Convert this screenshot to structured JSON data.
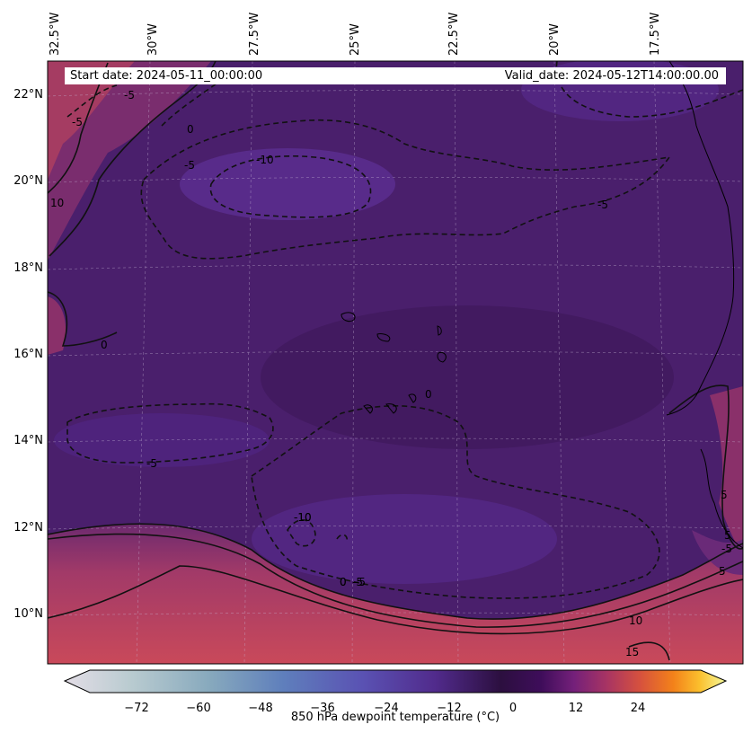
{
  "header": {
    "start_date": "Start date: 2024-05-11_00:00:00",
    "valid_date": "Valid_date: 2024-05-12T14:00:00.00"
  },
  "longitude_labels": [
    "32.5°W",
    "30°W",
    "27.5°W",
    "25°W",
    "22.5°W",
    "20°W",
    "17.5°W"
  ],
  "latitude_labels": [
    "22°N",
    "20°N",
    "18°N",
    "16°N",
    "14°N",
    "12°N",
    "10°N"
  ],
  "contour_labels": [
    "-5",
    "-5",
    "0",
    "-5",
    "-10",
    "-5",
    "-10",
    "-5",
    "0",
    "10",
    "0",
    "-5",
    "-10",
    "0",
    "-5",
    "0",
    "5",
    "10",
    "15",
    "5",
    "-5",
    "5"
  ],
  "colorbar": {
    "label": "850 hPa dewpoint temperature (°C)",
    "ticks": [
      "−72",
      "−60",
      "−48",
      "−36",
      "−24",
      "−12",
      "0",
      "12",
      "24"
    ],
    "tick_values": [
      -72,
      -60,
      -48,
      -36,
      -24,
      -12,
      0,
      12,
      24
    ],
    "range": [
      -84,
      36
    ],
    "colormap": "inferno-twilight"
  },
  "style": {
    "dry_color": "#4a2370",
    "dryest_color": "#5a2e8f",
    "moist_color": "#c44a5c"
  }
}
